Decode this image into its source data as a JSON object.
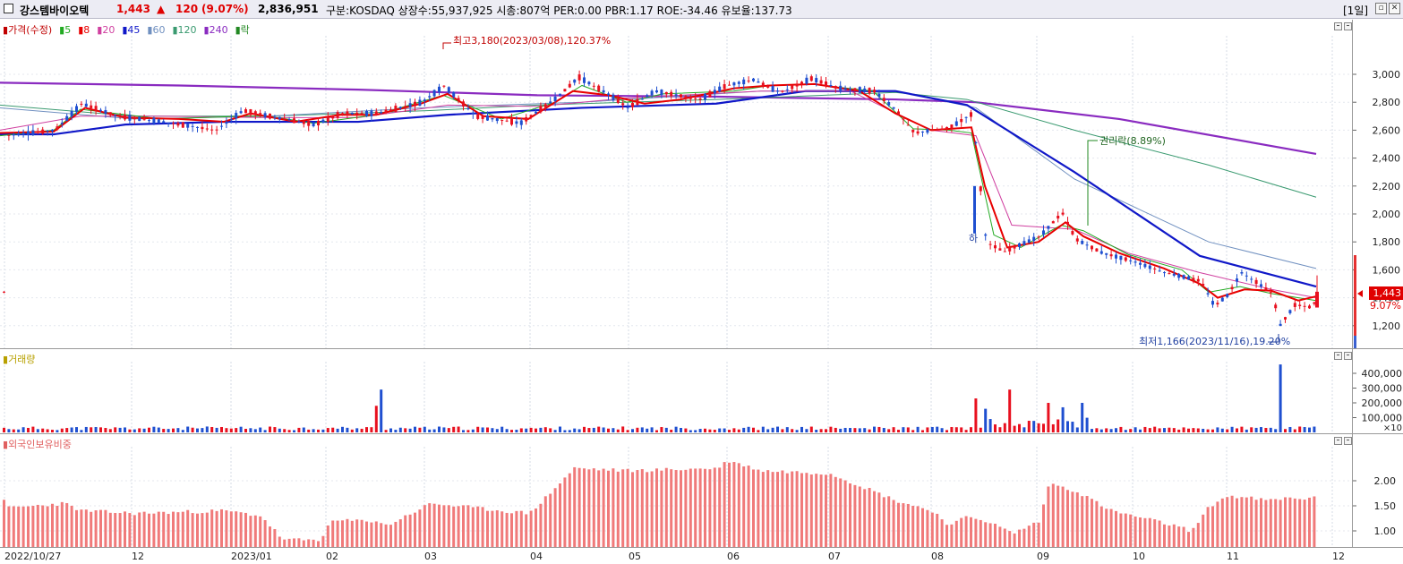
{
  "header": {
    "stock_name": "강스템바이오텍",
    "price": "1,443",
    "change_arrow": "▲",
    "change": "120",
    "change_pct": "(9.07%)",
    "volume": "2,836,951",
    "info": "구분:KOSDAQ 상장수:55,937,925 시총:807억 PER:0.00 PBR:1.17 ROE:-34.46 유보율:137.73",
    "period": "[1일]"
  },
  "colors": {
    "up": "#e8101f",
    "down": "#1f4fd0",
    "ma5": "#22aa22",
    "ma8": "#e80000",
    "ma20": "#d040a0",
    "ma45": "#1018c8",
    "ma60": "#7090c0",
    "ma120": "#3a9a70",
    "ma240": "#8a2bc0",
    "foreign": "#f07a7a"
  },
  "price_panel": {
    "legend": [
      {
        "label": "가격(수정)",
        "color": "#c00000"
      },
      {
        "label": "5",
        "color": "#22aa22"
      },
      {
        "label": "8",
        "color": "#e80000"
      },
      {
        "label": "20",
        "color": "#d040a0"
      },
      {
        "label": "45",
        "color": "#1018c8"
      },
      {
        "label": "60",
        "color": "#7090c0"
      },
      {
        "label": "120",
        "color": "#3a9a70"
      },
      {
        "label": "240",
        "color": "#8a2bc0"
      },
      {
        "label": "락",
        "color": "#228822"
      }
    ],
    "yticks": [
      "3,000",
      "2,800",
      "2,600",
      "2,400",
      "2,200",
      "2,000",
      "1,800",
      "1,600",
      "1,400",
      "1,200"
    ],
    "high_annotation": "최고3,180(2023/03/08),120.37%",
    "low_annotation": "최저1,166(2023/11/16),19.20%",
    "rights_annotation": "권리락(8.89%)",
    "ha_marker": "하",
    "current_price_label": "1,443",
    "current_pct_label": "9.07%"
  },
  "volume_panel": {
    "legend": "거래량",
    "yticks": [
      "400,000",
      "300,000",
      "200,000",
      "100,000"
    ],
    "multiplier": "×10"
  },
  "foreign_panel": {
    "legend": "외국인보유비중",
    "yticks": [
      "2.00",
      "1.50",
      "1.00"
    ]
  },
  "xaxis": {
    "labels": [
      "2022/10/27",
      "12",
      "2023/01",
      "02",
      "03",
      "04",
      "05",
      "06",
      "07",
      "08",
      "09",
      "10",
      "11",
      "12"
    ]
  }
}
